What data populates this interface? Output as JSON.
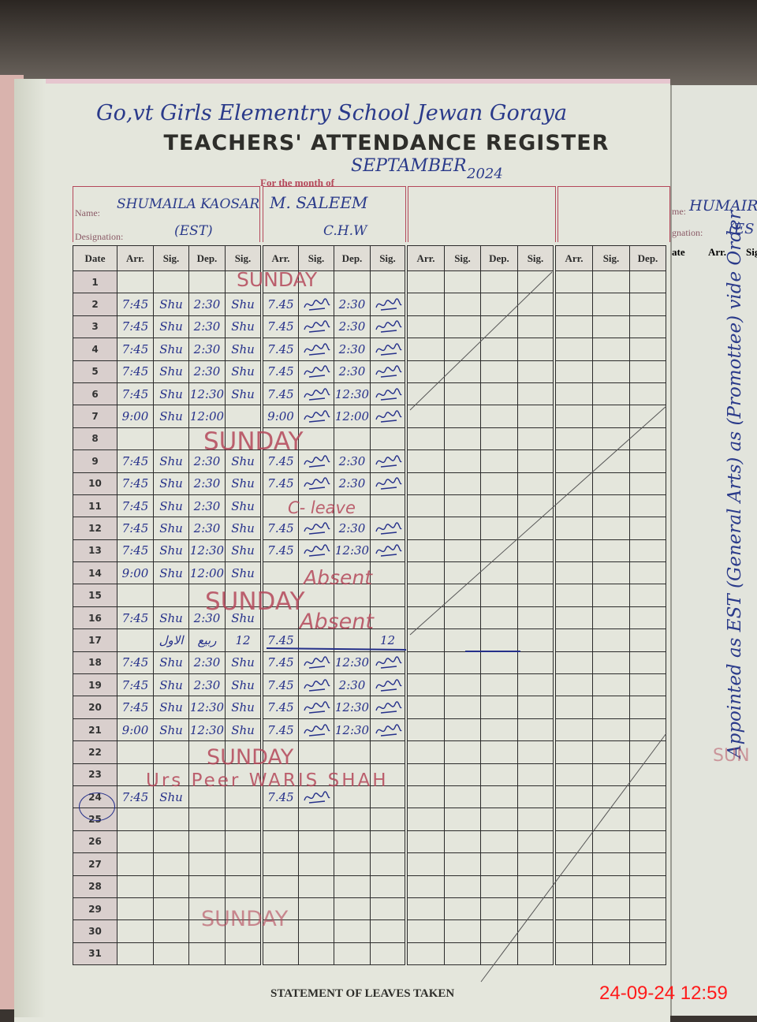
{
  "school_name": "Go,vt Girls Elementry School Jewan Goraya",
  "title": "TEACHERS' ATTENDANCE REGISTER",
  "month_label": "For the month of",
  "month_value": "SEPTAMBER",
  "year_value": "2024",
  "name_label": "Name:",
  "designation_label": "Designation:",
  "teachers": [
    {
      "name": "SHUMAILA KAOSAR",
      "designation": "(EST)"
    },
    {
      "name": "M. SALEEM",
      "designation": "C.H.W"
    }
  ],
  "columns": {
    "date": "Date",
    "arr": "Arr.",
    "sig": "Sig.",
    "dep": "Dep."
  },
  "rows": [
    {
      "d": "1",
      "t1": [
        "",
        "",
        "",
        ""
      ],
      "t2": [
        "",
        "",
        "",
        ""
      ]
    },
    {
      "d": "2",
      "t1": [
        "7:45",
        "Shu",
        "2:30",
        "Shu"
      ],
      "t2": [
        "7.45",
        "sig",
        "2:30",
        "sig"
      ]
    },
    {
      "d": "3",
      "t1": [
        "7:45",
        "Shu",
        "2:30",
        "Shu"
      ],
      "t2": [
        "7.45",
        "sig",
        "2:30",
        "sig"
      ]
    },
    {
      "d": "4",
      "t1": [
        "7:45",
        "Shu",
        "2:30",
        "Shu"
      ],
      "t2": [
        "7.45",
        "sig",
        "2:30",
        "sig"
      ]
    },
    {
      "d": "5",
      "t1": [
        "7:45",
        "Shu",
        "2:30",
        "Shu"
      ],
      "t2": [
        "7.45",
        "sig",
        "2:30",
        "sig"
      ]
    },
    {
      "d": "6",
      "t1": [
        "7:45",
        "Shu",
        "12:30",
        "Shu"
      ],
      "t2": [
        "7.45",
        "sig",
        "12:30",
        "sig"
      ]
    },
    {
      "d": "7",
      "t1": [
        "9:00",
        "Shu",
        "12:00",
        ""
      ],
      "t2": [
        "9:00",
        "sig",
        "12:00",
        "sig"
      ]
    },
    {
      "d": "8",
      "t1": [
        "",
        "",
        "",
        ""
      ],
      "t2": [
        "",
        "",
        "",
        ""
      ]
    },
    {
      "d": "9",
      "t1": [
        "7:45",
        "Shu",
        "2:30",
        "Shu"
      ],
      "t2": [
        "7.45",
        "sig",
        "2:30",
        "sig"
      ]
    },
    {
      "d": "10",
      "t1": [
        "7:45",
        "Shu",
        "2:30",
        "Shu"
      ],
      "t2": [
        "7.45",
        "sig",
        "2:30",
        "sig"
      ]
    },
    {
      "d": "11",
      "t1": [
        "7:45",
        "Shu",
        "2:30",
        "Shu"
      ],
      "t2": [
        "",
        "",
        "",
        ""
      ]
    },
    {
      "d": "12",
      "t1": [
        "7:45",
        "Shu",
        "2:30",
        "Shu"
      ],
      "t2": [
        "7.45",
        "sig",
        "2:30",
        "sig"
      ]
    },
    {
      "d": "13",
      "t1": [
        "7:45",
        "Shu",
        "12:30",
        "Shu"
      ],
      "t2": [
        "7.45",
        "sig",
        "12:30",
        "sig"
      ]
    },
    {
      "d": "14",
      "t1": [
        "9:00",
        "Shu",
        "12:00",
        "Shu"
      ],
      "t2": [
        "",
        "",
        "",
        ""
      ]
    },
    {
      "d": "15",
      "t1": [
        "",
        "",
        "",
        ""
      ],
      "t2": [
        "",
        "",
        "",
        ""
      ]
    },
    {
      "d": "16",
      "t1": [
        "7:45",
        "Shu",
        "2:30",
        "Shu"
      ],
      "t2": [
        "",
        "",
        "",
        ""
      ]
    },
    {
      "d": "17",
      "t1": [
        "",
        "الاول",
        "ربیع",
        "12"
      ],
      "t2": [
        "7.45",
        "",
        "",
        "12"
      ]
    },
    {
      "d": "18",
      "t1": [
        "7:45",
        "Shu",
        "2:30",
        "Shu"
      ],
      "t2": [
        "7.45",
        "sig",
        "12:30",
        "sig"
      ]
    },
    {
      "d": "19",
      "t1": [
        "7:45",
        "Shu",
        "2:30",
        "Shu"
      ],
      "t2": [
        "7.45",
        "sig",
        "2:30",
        "sig"
      ]
    },
    {
      "d": "20",
      "t1": [
        "7:45",
        "Shu",
        "12:30",
        "Shu"
      ],
      "t2": [
        "7.45",
        "sig",
        "12:30",
        "sig"
      ]
    },
    {
      "d": "21",
      "t1": [
        "9:00",
        "Shu",
        "12:30",
        "Shu"
      ],
      "t2": [
        "7.45",
        "sig",
        "12:30",
        "sig"
      ]
    },
    {
      "d": "22",
      "t1": [
        "",
        "",
        "",
        ""
      ],
      "t2": [
        "",
        "",
        "",
        ""
      ]
    },
    {
      "d": "23",
      "t1": [
        "",
        "",
        "",
        ""
      ],
      "t2": [
        "",
        "",
        "",
        ""
      ]
    },
    {
      "d": "24",
      "t1": [
        "7:45",
        "Shu",
        "",
        ""
      ],
      "t2": [
        "7.45",
        "sig",
        "",
        ""
      ]
    },
    {
      "d": "25",
      "t1": [
        "",
        "",
        "",
        ""
      ],
      "t2": [
        "",
        "",
        "",
        ""
      ]
    },
    {
      "d": "26",
      "t1": [
        "",
        "",
        "",
        ""
      ],
      "t2": [
        "",
        "",
        "",
        ""
      ]
    },
    {
      "d": "27",
      "t1": [
        "",
        "",
        "",
        ""
      ],
      "t2": [
        "",
        "",
        "",
        ""
      ]
    },
    {
      "d": "28",
      "t1": [
        "",
        "",
        "",
        ""
      ],
      "t2": [
        "",
        "",
        "",
        ""
      ]
    },
    {
      "d": "29",
      "t1": [
        "",
        "",
        "",
        ""
      ],
      "t2": [
        "",
        "",
        "",
        ""
      ]
    },
    {
      "d": "30",
      "t1": [
        "",
        "",
        "",
        ""
      ],
      "t2": [
        "",
        "",
        "",
        ""
      ]
    },
    {
      "d": "31",
      "t1": [
        "",
        "",
        "",
        ""
      ],
      "t2": [
        "",
        "",
        "",
        ""
      ]
    }
  ],
  "annotations": {
    "sunday": "SUNDAY",
    "c_leave": "C- leave",
    "absent": "Absent",
    "urs": "Urs Peer WARIS SHAH"
  },
  "right_page": {
    "name_label": "me:",
    "name": "HUMAIR",
    "designation_label": "gnation:",
    "designation": "(ES",
    "date_header": "ate",
    "arr_header": "Arr.",
    "sig_header": "Sig",
    "note": "Appointed as EST (General Arts) as (Promottee) vide Order",
    "sunday": "SUN"
  },
  "footer": "STATEMENT OF LEAVES TAKEN",
  "camera_timestamp": "24-09-24  12:59",
  "colors": {
    "ink_blue": "#25308a",
    "ink_red": "#b4485a",
    "stamp_red": "#ff1a1a"
  }
}
